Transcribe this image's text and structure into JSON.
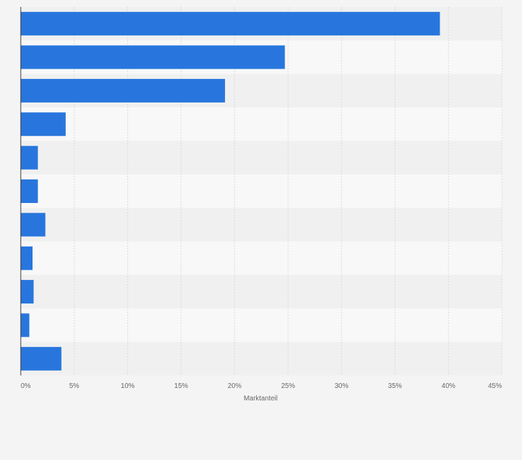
{
  "chart_data": {
    "type": "bar",
    "orientation": "horizontal",
    "title": "",
    "xlabel": "Marktanteil",
    "ylabel": "",
    "categories": [
      "",
      "",
      "",
      "",
      "",
      "",
      "",
      "",
      "",
      "",
      ""
    ],
    "values": [
      39.2,
      24.7,
      19.1,
      4.2,
      1.6,
      1.6,
      2.3,
      1.1,
      1.2,
      0.8,
      3.8
    ],
    "xlim": [
      0,
      45
    ],
    "xticks": [
      0,
      5,
      10,
      15,
      20,
      25,
      30,
      35,
      40,
      45
    ],
    "tick_labels": [
      "0%",
      "5%",
      "10%",
      "15%",
      "20%",
      "25%",
      "30%",
      "35%",
      "40%",
      "45%"
    ],
    "grid": true,
    "legend": "none",
    "colors": {
      "bar": "#2876dd",
      "band_dark": "#f0f0f0",
      "band_light": "#f8f8f8",
      "grid": "#d8d8d8",
      "axis": "#333333",
      "tick_text": "#666666",
      "background": "#f4f4f4"
    }
  }
}
